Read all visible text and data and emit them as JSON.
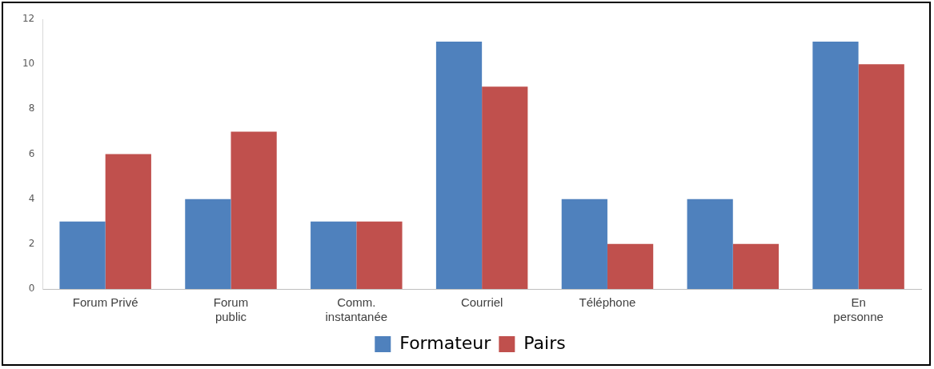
{
  "chart_data": {
    "type": "bar",
    "categories": [
      "Forum Privé",
      "Forum public",
      "Comm. instantanée",
      "Courriel",
      "Téléphone",
      null,
      "En personne"
    ],
    "series": [
      {
        "name": "Formateur",
        "color": "#4f81bd",
        "values": [
          3,
          4,
          3,
          11,
          4,
          4,
          11
        ]
      },
      {
        "name": "Pairs",
        "color": "#c0504d",
        "values": [
          6,
          7,
          3,
          9,
          2,
          2,
          10
        ]
      }
    ],
    "ylim": [
      0,
      12
    ],
    "yticks": [
      0,
      2,
      4,
      6,
      8,
      10,
      12
    ],
    "grid": false,
    "legend": "bottom"
  }
}
